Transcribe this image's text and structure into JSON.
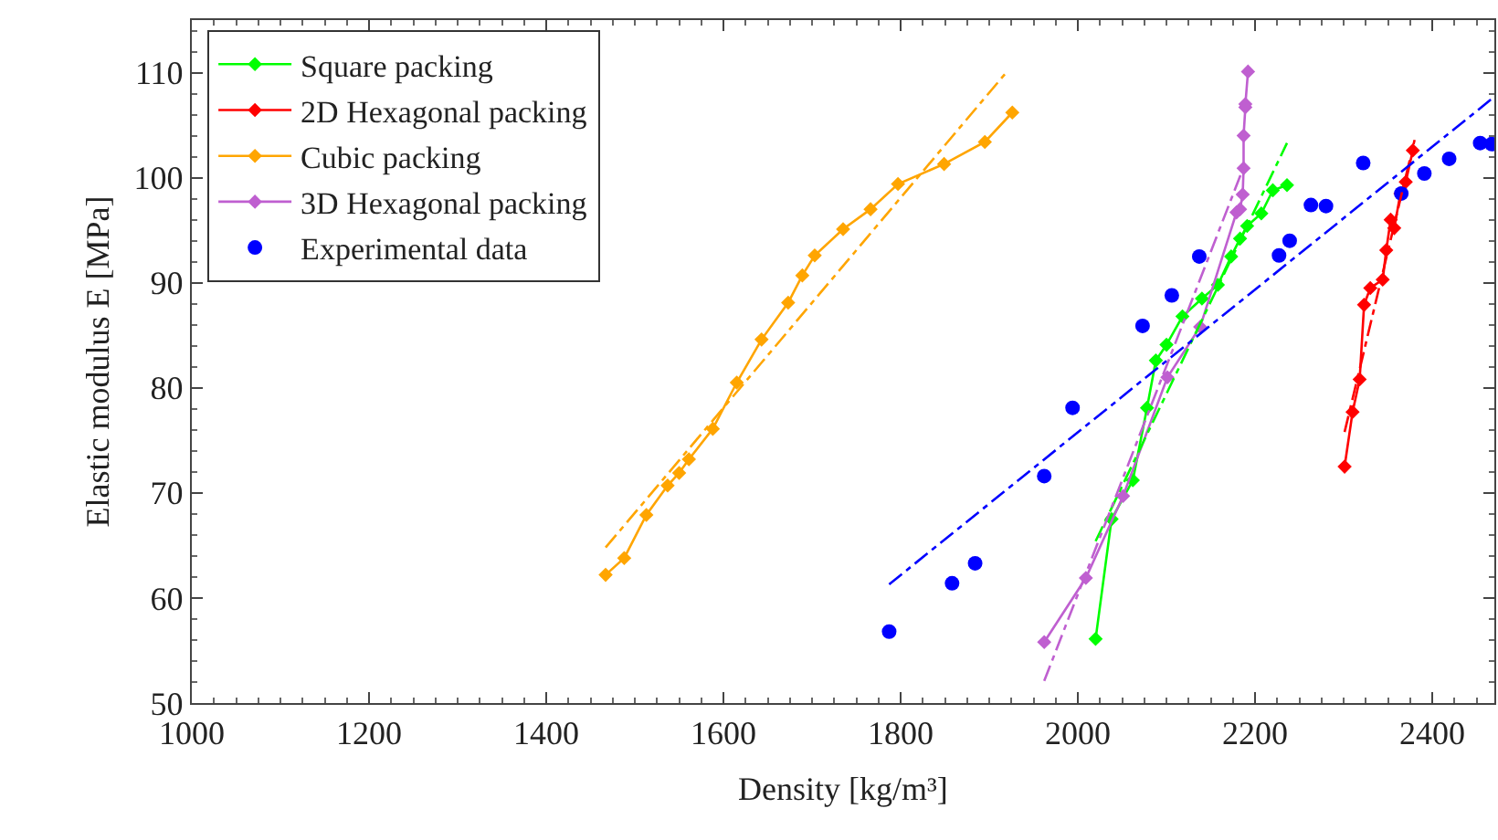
{
  "chart_data": {
    "type": "line",
    "xlabel": "Density [kg/m³]",
    "ylabel": "Elastic modulus E [MPa]",
    "xlim": [
      1000,
      2470
    ],
    "xticks": [
      1000,
      1200,
      1400,
      1600,
      1800,
      2000,
      2200,
      2400
    ],
    "ylim": [
      50,
      115
    ],
    "yticks": [
      50,
      60,
      70,
      80,
      90,
      100,
      110
    ],
    "grid": false,
    "legend": "top left",
    "marker": "diamond",
    "series": [
      {
        "name": "Square packing",
        "color": "#00ff00",
        "x": [
          2020,
          2038,
          2062,
          2078,
          2088,
          2100,
          2118,
          2140,
          2158,
          2173,
          2183,
          2191,
          2207,
          2220,
          2236
        ],
        "values": [
          56.1,
          67.5,
          71.2,
          78.1,
          82.6,
          84.1,
          86.8,
          88.5,
          89.8,
          92.5,
          94.2,
          95.4,
          96.6,
          98.8,
          99.3
        ]
      },
      {
        "name": "2D Hexagonal packing",
        "color": "#ff0000",
        "x": [
          2301,
          2310,
          2318,
          2323,
          2330,
          2344,
          2348,
          2353,
          2357,
          2364,
          2370,
          2378
        ],
        "values": [
          72.5,
          77.7,
          80.8,
          87.9,
          89.5,
          90.3,
          93.1,
          96.0,
          95.2,
          98.5,
          99.6,
          102.6
        ]
      },
      {
        "name": "Cubic packing",
        "color": "#ffa500",
        "x": [
          1467,
          1488,
          1513,
          1537,
          1550,
          1561,
          1588,
          1615,
          1643,
          1673,
          1689,
          1703,
          1735,
          1766,
          1797,
          1849,
          1895,
          1926
        ],
        "values": [
          62.2,
          63.8,
          67.9,
          70.7,
          71.9,
          73.2,
          76.1,
          80.5,
          84.6,
          88.1,
          90.7,
          92.6,
          95.1,
          97.0,
          99.4,
          101.3,
          103.4,
          106.2
        ]
      },
      {
        "name": "3D Hexagonal packing",
        "color": "#bf5fd0",
        "x": [
          1962,
          2009,
          2051,
          2101,
          2138,
          2179,
          2183,
          2186,
          2187,
          2187,
          2189,
          2189,
          2192
        ],
        "values": [
          55.8,
          61.9,
          69.7,
          81.0,
          85.8,
          96.7,
          97.0,
          98.4,
          100.9,
          104.0,
          106.7,
          107.0,
          110.1
        ]
      },
      {
        "name": "Experimental data",
        "type": "scatter",
        "marker": "circle",
        "color": "#0000ff",
        "x": [
          1787,
          1858,
          1884,
          1962,
          1994,
          2073,
          2106,
          2137,
          2227,
          2239,
          2263,
          2280,
          2322,
          2365,
          2391,
          2419,
          2454,
          2467
        ],
        "values": [
          56.8,
          61.4,
          63.3,
          71.6,
          78.1,
          85.9,
          88.8,
          92.5,
          92.6,
          94.0,
          97.4,
          97.3,
          101.4,
          98.5,
          100.4,
          101.8,
          103.3,
          103.2
        ]
      },
      {
        "type": "line",
        "marker": "none",
        "line_style": "dashed",
        "color": "#00ff00",
        "x": [
          2020,
          2236
        ],
        "values": [
          65.4,
          103.3
        ]
      },
      {
        "type": "line",
        "marker": "none",
        "line_style": "dashed",
        "color": "#ff0000",
        "x": [
          2301,
          2380
        ],
        "values": [
          75.8,
          103.6
        ]
      },
      {
        "type": "line",
        "marker": "none",
        "line_style": "dashed",
        "color": "#ffa500",
        "x": [
          1467,
          1920
        ],
        "values": [
          64.8,
          110.1
        ]
      },
      {
        "type": "line",
        "marker": "none",
        "line_style": "dashed",
        "color": "#bf5fd0",
        "x": [
          1962,
          2187
        ],
        "values": [
          52.1,
          101.0
        ]
      },
      {
        "type": "line",
        "marker": "none",
        "line_style": "dashed",
        "color": "#0000ff",
        "x": [
          1787,
          2470
        ],
        "values": [
          61.3,
          107.7
        ]
      }
    ]
  }
}
